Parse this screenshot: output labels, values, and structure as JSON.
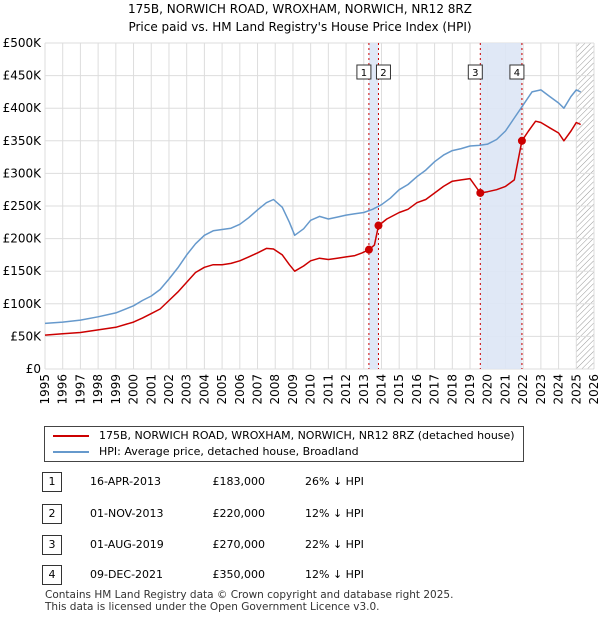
{
  "chart_data": {
    "type": "line",
    "title": "175B, NORWICH ROAD, WROXHAM, NORWICH, NR12 8RZ",
    "subtitle": "Price paid vs. HM Land Registry's House Price Index (HPI)",
    "xlim": [
      1995,
      2026
    ],
    "ylim": [
      0,
      500000
    ],
    "x_ticks": [
      "1995",
      "1996",
      "1997",
      "1998",
      "1999",
      "2000",
      "2001",
      "2002",
      "2003",
      "2004",
      "2005",
      "2006",
      "2007",
      "2008",
      "2009",
      "2010",
      "2011",
      "2012",
      "2013",
      "2014",
      "2015",
      "2016",
      "2017",
      "2018",
      "2019",
      "2020",
      "2021",
      "2022",
      "2023",
      "2024",
      "2025",
      "2026"
    ],
    "y_ticks": [
      {
        "value": 0,
        "label": "£0"
      },
      {
        "value": 50000,
        "label": "£50K"
      },
      {
        "value": 100000,
        "label": "£100K"
      },
      {
        "value": 150000,
        "label": "£150K"
      },
      {
        "value": 200000,
        "label": "£200K"
      },
      {
        "value": 250000,
        "label": "£250K"
      },
      {
        "value": 300000,
        "label": "£300K"
      },
      {
        "value": 350000,
        "label": "£350K"
      },
      {
        "value": 400000,
        "label": "£400K"
      },
      {
        "value": 450000,
        "label": "£450K"
      },
      {
        "value": 500000,
        "label": "£500K"
      }
    ],
    "grid": true,
    "series": [
      {
        "name": "175B, NORWICH ROAD, WROXHAM, NORWICH, NR12 8RZ (detached house)",
        "color": "#cc0000",
        "points": [
          [
            1995.0,
            52000
          ],
          [
            1996.0,
            54000
          ],
          [
            1997.0,
            56000
          ],
          [
            1998.0,
            60000
          ],
          [
            1999.0,
            64000
          ],
          [
            2000.0,
            72000
          ],
          [
            2000.5,
            78000
          ],
          [
            2001.0,
            85000
          ],
          [
            2001.5,
            92000
          ],
          [
            2002.0,
            105000
          ],
          [
            2002.5,
            118000
          ],
          [
            2003.0,
            133000
          ],
          [
            2003.5,
            148000
          ],
          [
            2004.0,
            156000
          ],
          [
            2004.5,
            160000
          ],
          [
            2005.0,
            160000
          ],
          [
            2005.5,
            162000
          ],
          [
            2006.0,
            166000
          ],
          [
            2006.5,
            172000
          ],
          [
            2007.0,
            178000
          ],
          [
            2007.5,
            185000
          ],
          [
            2007.9,
            184000
          ],
          [
            2008.4,
            175000
          ],
          [
            2008.8,
            160000
          ],
          [
            2009.1,
            150000
          ],
          [
            2009.6,
            158000
          ],
          [
            2010.0,
            166000
          ],
          [
            2010.5,
            170000
          ],
          [
            2011.0,
            168000
          ],
          [
            2011.5,
            170000
          ],
          [
            2012.0,
            172000
          ],
          [
            2012.5,
            174000
          ],
          [
            2012.9,
            178000
          ],
          [
            2013.29,
            183000
          ],
          [
            2013.29,
            183000
          ],
          [
            2013.6,
            190000
          ],
          [
            2013.83,
            220000
          ],
          [
            2013.83,
            220000
          ],
          [
            2014.3,
            230000
          ],
          [
            2015.0,
            240000
          ],
          [
            2015.5,
            245000
          ],
          [
            2016.0,
            255000
          ],
          [
            2016.5,
            260000
          ],
          [
            2017.0,
            270000
          ],
          [
            2017.5,
            280000
          ],
          [
            2018.0,
            288000
          ],
          [
            2018.5,
            290000
          ],
          [
            2019.0,
            292000
          ],
          [
            2019.58,
            270000
          ],
          [
            2019.58,
            270000
          ],
          [
            2020.0,
            272000
          ],
          [
            2020.5,
            275000
          ],
          [
            2021.0,
            280000
          ],
          [
            2021.5,
            290000
          ],
          [
            2021.93,
            350000
          ],
          [
            2021.93,
            350000
          ],
          [
            2022.3,
            365000
          ],
          [
            2022.7,
            380000
          ],
          [
            2023.0,
            378000
          ],
          [
            2023.5,
            370000
          ],
          [
            2024.0,
            362000
          ],
          [
            2024.3,
            350000
          ],
          [
            2024.7,
            365000
          ],
          [
            2025.0,
            378000
          ],
          [
            2025.25,
            375000
          ]
        ]
      },
      {
        "name": "HPI: Average price, detached house, Broadland",
        "color": "#6699cc",
        "points": [
          [
            1995.0,
            70000
          ],
          [
            1996.0,
            72000
          ],
          [
            1997.0,
            75000
          ],
          [
            1998.0,
            80000
          ],
          [
            1999.0,
            86000
          ],
          [
            2000.0,
            97000
          ],
          [
            2000.5,
            105000
          ],
          [
            2001.0,
            112000
          ],
          [
            2001.5,
            122000
          ],
          [
            2002.0,
            138000
          ],
          [
            2002.5,
            155000
          ],
          [
            2003.0,
            175000
          ],
          [
            2003.5,
            192000
          ],
          [
            2004.0,
            205000
          ],
          [
            2004.5,
            212000
          ],
          [
            2005.0,
            214000
          ],
          [
            2005.5,
            216000
          ],
          [
            2006.0,
            222000
          ],
          [
            2006.5,
            232000
          ],
          [
            2007.0,
            244000
          ],
          [
            2007.5,
            255000
          ],
          [
            2007.9,
            260000
          ],
          [
            2008.4,
            248000
          ],
          [
            2008.8,
            225000
          ],
          [
            2009.1,
            205000
          ],
          [
            2009.6,
            215000
          ],
          [
            2010.0,
            228000
          ],
          [
            2010.5,
            234000
          ],
          [
            2011.0,
            230000
          ],
          [
            2011.5,
            233000
          ],
          [
            2012.0,
            236000
          ],
          [
            2012.5,
            238000
          ],
          [
            2013.0,
            240000
          ],
          [
            2013.5,
            245000
          ],
          [
            2014.0,
            252000
          ],
          [
            2014.5,
            262000
          ],
          [
            2015.0,
            275000
          ],
          [
            2015.5,
            283000
          ],
          [
            2016.0,
            295000
          ],
          [
            2016.5,
            305000
          ],
          [
            2017.0,
            318000
          ],
          [
            2017.5,
            328000
          ],
          [
            2018.0,
            335000
          ],
          [
            2018.5,
            338000
          ],
          [
            2019.0,
            342000
          ],
          [
            2019.5,
            343000
          ],
          [
            2020.0,
            345000
          ],
          [
            2020.5,
            352000
          ],
          [
            2021.0,
            365000
          ],
          [
            2021.5,
            385000
          ],
          [
            2022.0,
            405000
          ],
          [
            2022.5,
            425000
          ],
          [
            2023.0,
            428000
          ],
          [
            2023.5,
            418000
          ],
          [
            2024.0,
            408000
          ],
          [
            2024.3,
            400000
          ],
          [
            2024.7,
            418000
          ],
          [
            2025.0,
            428000
          ],
          [
            2025.25,
            425000
          ]
        ]
      }
    ],
    "markers": [
      {
        "label": "1",
        "x": 2013.29,
        "y": 183000
      },
      {
        "label": "2",
        "x": 2013.83,
        "y": 220000
      },
      {
        "label": "3",
        "x": 2019.58,
        "y": 270000
      },
      {
        "label": "4",
        "x": 2021.93,
        "y": 350000
      }
    ],
    "shaded_ranges": [
      [
        2013.29,
        2013.83
      ],
      [
        2019.58,
        2021.93
      ]
    ],
    "hatched_from": 2025.0,
    "colors": {
      "price_line": "#cc0000",
      "hpi_line": "#6699cc",
      "shade": "#dde6f5",
      "marker_line": "#cc0000"
    }
  },
  "legend": {
    "items": [
      {
        "label": "175B, NORWICH ROAD, WROXHAM, NORWICH, NR12 8RZ (detached house)",
        "color": "#cc0000"
      },
      {
        "label": "HPI: Average price, detached house, Broadland",
        "color": "#6699cc"
      }
    ]
  },
  "transactions": [
    {
      "num": "1",
      "date": "16-APR-2013",
      "price": "£183,000",
      "hpi": "26% ↓ HPI"
    },
    {
      "num": "2",
      "date": "01-NOV-2013",
      "price": "£220,000",
      "hpi": "12% ↓ HPI"
    },
    {
      "num": "3",
      "date": "01-AUG-2019",
      "price": "£270,000",
      "hpi": "22% ↓ HPI"
    },
    {
      "num": "4",
      "date": "09-DEC-2021",
      "price": "£350,000",
      "hpi": "12% ↓ HPI"
    }
  ],
  "footer": {
    "line1": "Contains HM Land Registry data © Crown copyright and database right 2025.",
    "line2": "This data is licensed under the Open Government Licence v3.0."
  }
}
